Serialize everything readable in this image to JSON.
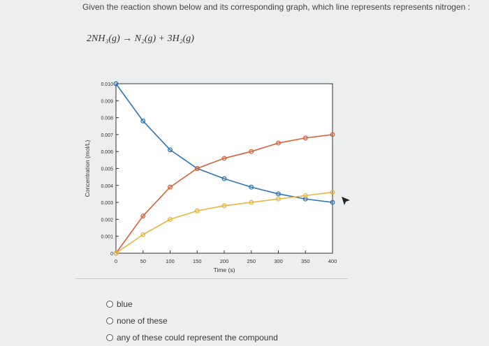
{
  "question": {
    "text": "Given the reaction shown below and its corresponding graph, which line represents represents nitrogen :",
    "equation": "2NH₃(g) → N₂(g) + 3H₂(g)"
  },
  "answers": [
    {
      "label": "blue"
    },
    {
      "label": "none of these"
    },
    {
      "label": "any of these could represent the compound"
    }
  ],
  "chart_data": {
    "type": "line",
    "title": "",
    "xlabel": "Time (s)",
    "ylabel": "Concentration (mol/L)",
    "xlim": [
      0,
      400
    ],
    "ylim": [
      0,
      0.01
    ],
    "x_ticks": [
      0,
      50,
      100,
      150,
      200,
      250,
      300,
      350,
      400
    ],
    "x_tick_labels": [
      "0",
      "50",
      "100",
      "150",
      "200",
      "250",
      "300",
      "350",
      "400"
    ],
    "y_ticks": [
      0,
      0.001,
      0.002,
      0.003,
      0.004,
      0.005,
      0.006,
      0.007,
      0.008,
      0.009,
      0.01
    ],
    "y_tick_labels": [
      "0",
      "0.001",
      "0.002",
      "0.003",
      "0.004",
      "0.005",
      "0.006",
      "0.007",
      "0.008",
      "0.009",
      "0.010"
    ],
    "grid": false,
    "x": [
      0,
      50,
      100,
      150,
      200,
      250,
      300,
      350,
      400
    ],
    "series": [
      {
        "color": "#2f74b5",
        "values": [
          0.01,
          0.0078,
          0.0061,
          0.005,
          0.0044,
          0.0039,
          0.0035,
          0.0032,
          0.003
        ]
      },
      {
        "color": "#d9613a",
        "values": [
          0.0,
          0.0022,
          0.0039,
          0.005,
          0.0056,
          0.006,
          0.0065,
          0.0068,
          0.007
        ]
      },
      {
        "color": "#e8b540",
        "values": [
          0.0,
          0.0011,
          0.002,
          0.0025,
          0.0028,
          0.003,
          0.0032,
          0.0034,
          0.0036
        ]
      }
    ]
  },
  "colors": {
    "axis": "#333333"
  },
  "icons": {
    "pointer": "cursor-arrow-icon"
  }
}
